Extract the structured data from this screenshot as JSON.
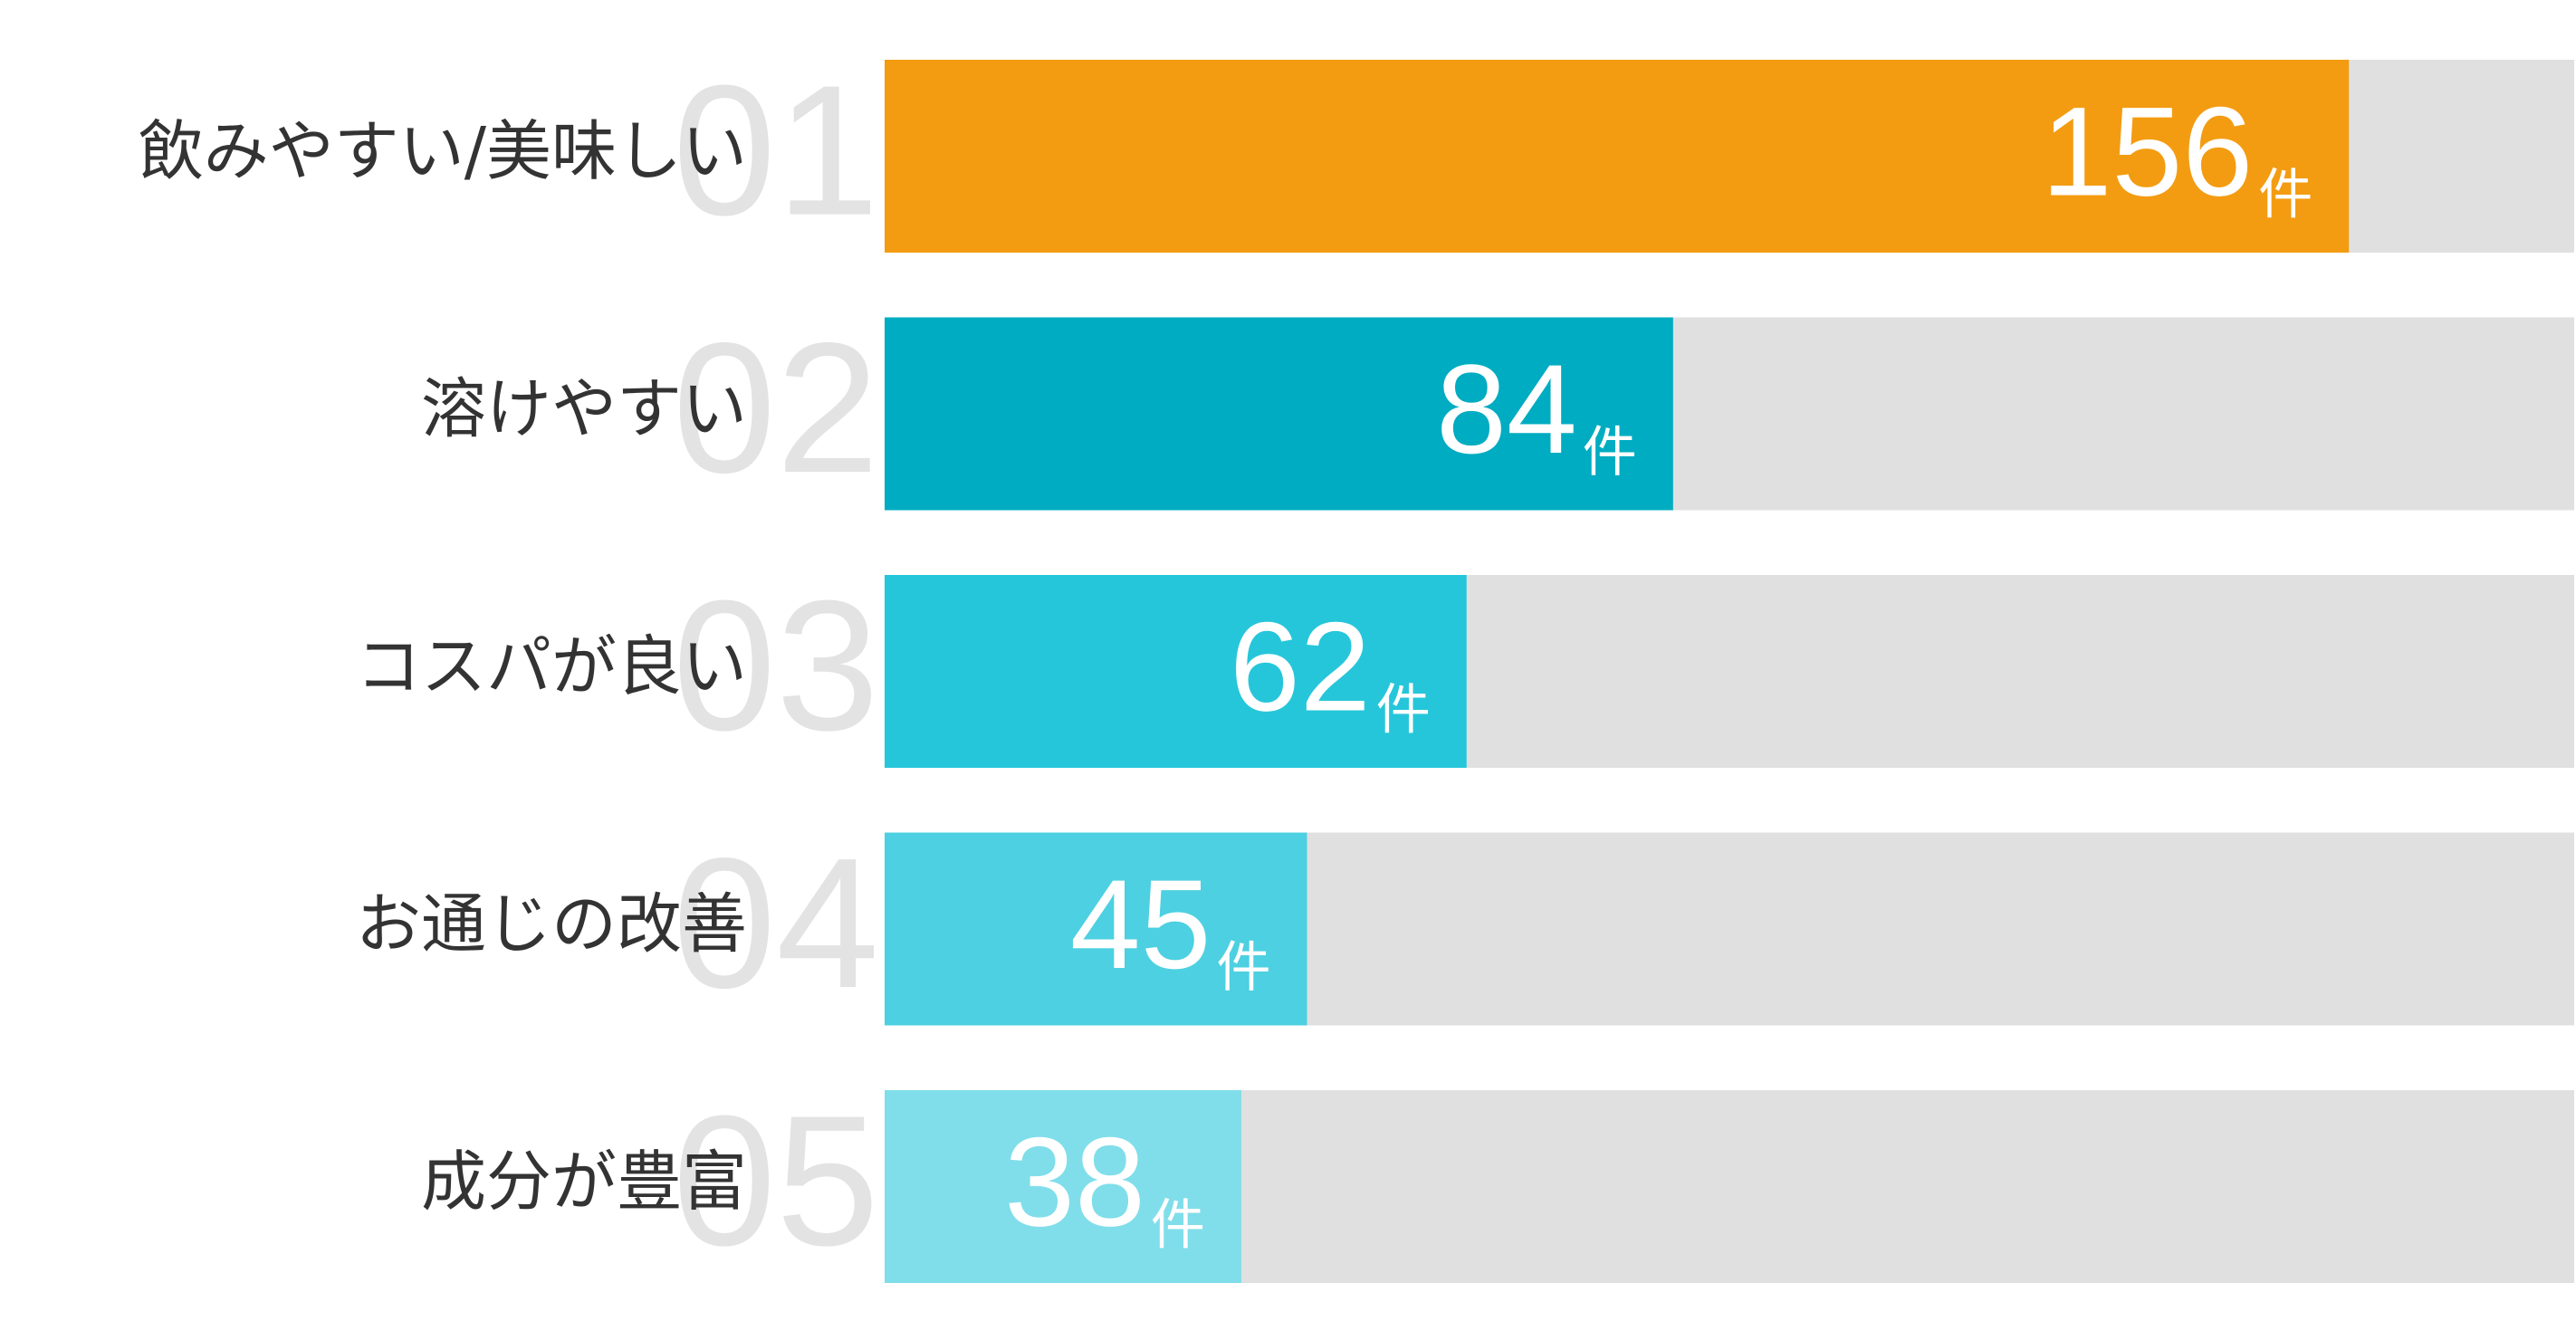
{
  "chart_data": {
    "type": "bar",
    "orientation": "horizontal",
    "categories": [
      "飲みやすい/美味しい",
      "溶けやすい",
      "コスパが良い",
      "お通じの改善",
      "成分が豊富"
    ],
    "rank_labels": [
      "01",
      "02",
      "03",
      "04",
      "05"
    ],
    "values": [
      156,
      84,
      62,
      45,
      38
    ],
    "unit": "件",
    "colors": [
      "#f39c12",
      "#00acc1",
      "#26c6da",
      "#4dd0e1",
      "#80deea"
    ],
    "track_color": "#e0e0e0",
    "xlim": [
      0,
      180
    ]
  }
}
